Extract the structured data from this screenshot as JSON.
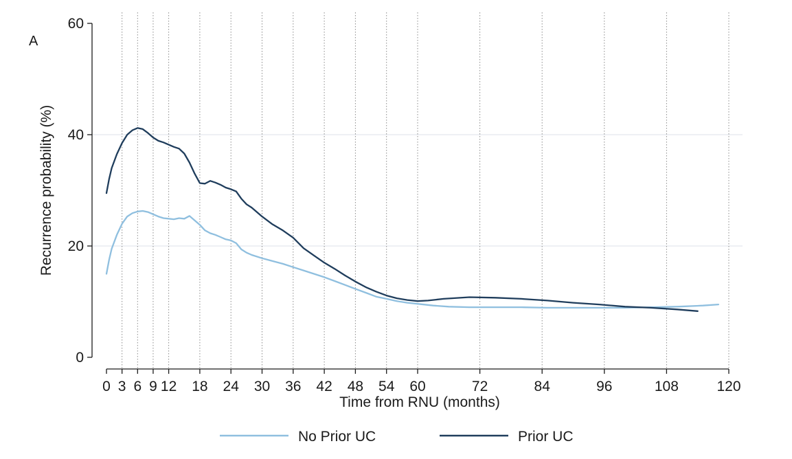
{
  "chart_data": {
    "type": "line",
    "panel_label": "A",
    "xlabel": "Time from RNU (months)",
    "ylabel": "Recurrence probability (%)",
    "xlim": [
      0,
      120
    ],
    "ylim": [
      0,
      60
    ],
    "x_ticks": [
      0,
      3,
      6,
      9,
      12,
      18,
      24,
      30,
      36,
      42,
      48,
      54,
      60,
      72,
      84,
      96,
      108,
      120
    ],
    "x_tick_labels": [
      "0",
      "3",
      "6",
      "9",
      "12",
      "18",
      "24",
      "30",
      "36",
      "42",
      "48",
      "54",
      "60",
      "72",
      "84",
      "96",
      "108",
      "120"
    ],
    "y_ticks": [
      0,
      20,
      40,
      60
    ],
    "y_tick_labels": [
      "0",
      "20",
      "40",
      "60"
    ],
    "grid": "horizontal solid at 20 and 40; vertical dotted at each x tick",
    "legend_position": "bottom",
    "series": [
      {
        "name": "No Prior UC",
        "color": "#8fbfdf",
        "x": [
          0,
          0.5,
          1,
          2,
          3,
          4,
          5,
          6,
          7,
          8,
          9,
          10,
          11,
          12,
          13,
          14,
          15,
          16,
          17,
          18,
          19,
          20,
          21,
          22,
          23,
          24,
          25,
          26,
          27,
          28,
          30,
          32,
          34,
          36,
          38,
          40,
          42,
          44,
          46,
          48,
          50,
          52,
          54,
          56,
          58,
          60,
          63,
          66,
          70,
          75,
          80,
          85,
          90,
          95,
          100,
          105,
          110,
          115,
          118
        ],
        "y": [
          15.0,
          17.5,
          19.5,
          22.0,
          24.0,
          25.3,
          25.9,
          26.2,
          26.3,
          26.1,
          25.7,
          25.3,
          25.0,
          24.9,
          24.8,
          25.0,
          24.9,
          25.4,
          24.6,
          23.8,
          22.8,
          22.3,
          22.0,
          21.6,
          21.2,
          21.0,
          20.5,
          19.4,
          18.8,
          18.4,
          17.8,
          17.3,
          16.8,
          16.2,
          15.6,
          15.0,
          14.4,
          13.7,
          13.0,
          12.3,
          11.6,
          10.9,
          10.5,
          10.1,
          9.8,
          9.6,
          9.3,
          9.1,
          9.0,
          9.0,
          9.0,
          8.9,
          8.9,
          8.9,
          8.9,
          9.0,
          9.1,
          9.3,
          9.5
        ]
      },
      {
        "name": "Prior UC",
        "color": "#1f3d5c",
        "x": [
          0,
          0.5,
          1,
          2,
          3,
          4,
          5,
          6,
          7,
          8,
          9,
          10,
          11,
          12,
          13,
          14,
          15,
          16,
          17,
          18,
          19,
          20,
          21,
          22,
          23,
          24,
          25,
          26,
          27,
          28,
          30,
          32,
          34,
          36,
          38,
          40,
          42,
          44,
          46,
          48,
          50,
          52,
          54,
          56,
          58,
          60,
          62,
          65,
          70,
          75,
          80,
          85,
          90,
          95,
          100,
          105,
          110,
          114
        ],
        "y": [
          29.5,
          32.0,
          34.0,
          36.5,
          38.5,
          40.0,
          40.8,
          41.2,
          41.0,
          40.3,
          39.5,
          38.9,
          38.6,
          38.2,
          37.8,
          37.5,
          36.6,
          35.0,
          33.0,
          31.3,
          31.2,
          31.7,
          31.4,
          31.0,
          30.5,
          30.2,
          29.8,
          28.5,
          27.5,
          26.9,
          25.3,
          23.9,
          22.8,
          21.5,
          19.6,
          18.3,
          17.0,
          15.9,
          14.7,
          13.6,
          12.6,
          11.8,
          11.1,
          10.6,
          10.3,
          10.1,
          10.2,
          10.5,
          10.8,
          10.7,
          10.5,
          10.2,
          9.8,
          9.5,
          9.1,
          8.9,
          8.6,
          8.3
        ]
      }
    ]
  }
}
